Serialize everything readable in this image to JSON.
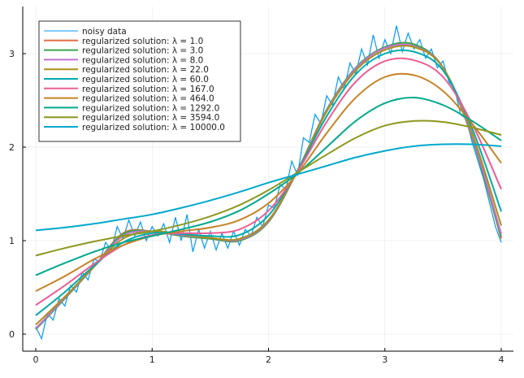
{
  "chart_data": {
    "type": "line",
    "title": "",
    "xlabel": "",
    "ylabel": "",
    "xlim": [
      -0.12,
      4.1
    ],
    "ylim": [
      -0.18,
      3.48
    ],
    "xticks": [
      0,
      1,
      2,
      3,
      4
    ],
    "yticks": [
      0,
      1,
      2,
      3
    ],
    "xtick_labels": [
      "0",
      "1",
      "2",
      "3",
      "4"
    ],
    "ytick_labels": [
      "0",
      "1",
      "2",
      "3"
    ],
    "grid": true,
    "legend_position": "top-left",
    "noisy": {
      "name": "noisy data",
      "color": "#009AFA",
      "x": [
        0,
        0.05,
        0.1,
        0.15,
        0.2,
        0.25,
        0.3,
        0.35,
        0.4,
        0.45,
        0.5,
        0.55,
        0.6,
        0.65,
        0.7,
        0.75,
        0.8,
        0.85,
        0.9,
        0.95,
        1,
        1.05,
        1.1,
        1.15,
        1.2,
        1.25,
        1.3,
        1.35,
        1.4,
        1.45,
        1.5,
        1.55,
        1.6,
        1.65,
        1.7,
        1.75,
        1.8,
        1.85,
        1.9,
        1.95,
        2,
        2.05,
        2.1,
        2.15,
        2.2,
        2.25,
        2.3,
        2.35,
        2.4,
        2.45,
        2.5,
        2.55,
        2.6,
        2.65,
        2.7,
        2.75,
        2.8,
        2.85,
        2.9,
        2.95,
        3,
        3.05,
        3.1,
        3.15,
        3.2,
        3.25,
        3.3,
        3.35,
        3.4,
        3.45,
        3.5,
        3.55,
        3.6,
        3.65,
        3.7,
        3.75,
        3.8,
        3.85,
        3.9,
        3.95,
        4
      ],
      "y": [
        0.08,
        -0.05,
        0.22,
        0.15,
        0.38,
        0.3,
        0.52,
        0.45,
        0.66,
        0.58,
        0.8,
        0.78,
        0.98,
        0.9,
        1.15,
        1.02,
        1.22,
        1.05,
        1.2,
        1.0,
        1.15,
        1.05,
        1.18,
        0.98,
        1.25,
        1.0,
        1.28,
        0.88,
        1.12,
        0.92,
        1.1,
        0.9,
        1.08,
        0.92,
        1.1,
        0.95,
        1.12,
        1.05,
        1.25,
        1.15,
        1.38,
        1.35,
        1.6,
        1.55,
        1.85,
        1.7,
        2.1,
        2.05,
        2.35,
        2.25,
        2.55,
        2.45,
        2.75,
        2.62,
        2.9,
        2.78,
        3.05,
        2.88,
        3.2,
        2.95,
        3.15,
        3.0,
        3.3,
        3.02,
        3.22,
        3.05,
        3.15,
        2.95,
        3.05,
        2.85,
        2.92,
        2.7,
        2.62,
        2.35,
        2.3,
        2.05,
        1.85,
        1.65,
        1.4,
        1.15,
        0.98
      ]
    },
    "x": [
      0,
      0.25,
      0.5,
      0.75,
      1,
      1.25,
      1.5,
      1.75,
      2,
      2.25,
      2.5,
      2.75,
      3,
      3.25,
      3.5,
      3.75,
      4
    ],
    "series": [
      {
        "name": "regularized solution: λ = 1.0",
        "color": "#E36F47",
        "values": [
          0.05,
          0.38,
          0.72,
          1.08,
          1.1,
          1.05,
          1.02,
          1.0,
          1.2,
          1.75,
          2.4,
          2.85,
          3.07,
          3.1,
          2.85,
          2.1,
          1.02
        ]
      },
      {
        "name": "regularized solution: λ = 3.0",
        "color": "#3EA44E",
        "values": [
          0.05,
          0.38,
          0.72,
          1.07,
          1.1,
          1.05,
          1.02,
          1.0,
          1.2,
          1.75,
          2.4,
          2.85,
          3.07,
          3.1,
          2.85,
          2.1,
          1.04
        ]
      },
      {
        "name": "regularized solution: λ = 8.0",
        "color": "#C371D2",
        "values": [
          0.06,
          0.39,
          0.72,
          1.05,
          1.1,
          1.06,
          1.03,
          1.01,
          1.21,
          1.75,
          2.39,
          2.84,
          3.06,
          3.08,
          2.85,
          2.12,
          1.07
        ]
      },
      {
        "name": "regularized solution: λ = 22.0",
        "color": "#AC8E18",
        "values": [
          0.1,
          0.4,
          0.72,
          1.02,
          1.1,
          1.07,
          1.03,
          1.02,
          1.22,
          1.75,
          2.38,
          2.82,
          3.04,
          3.07,
          2.85,
          2.15,
          1.16
        ]
      },
      {
        "name": "regularized solution: λ = 60.0",
        "color": "#00AAAE",
        "values": [
          0.2,
          0.45,
          0.73,
          0.98,
          1.08,
          1.07,
          1.05,
          1.06,
          1.27,
          1.75,
          2.33,
          2.78,
          3.0,
          3.02,
          2.82,
          2.2,
          1.31
        ]
      },
      {
        "name": "regularized solution: λ = 167.0",
        "color": "#ED5E93",
        "values": [
          0.31,
          0.52,
          0.75,
          0.95,
          1.06,
          1.08,
          1.08,
          1.12,
          1.32,
          1.74,
          2.27,
          2.7,
          2.92,
          2.93,
          2.75,
          2.25,
          1.55
        ]
      },
      {
        "name": "regularized solution: λ = 464.0",
        "color": "#C68225",
        "values": [
          0.46,
          0.62,
          0.8,
          0.95,
          1.05,
          1.1,
          1.14,
          1.22,
          1.4,
          1.72,
          2.15,
          2.53,
          2.75,
          2.77,
          2.6,
          2.25,
          1.83
        ]
      },
      {
        "name": "regularized solution: λ = 1292.0",
        "color": "#00A98D",
        "values": [
          0.63,
          0.76,
          0.88,
          0.98,
          1.05,
          1.12,
          1.2,
          1.32,
          1.5,
          1.72,
          2.0,
          2.28,
          2.47,
          2.53,
          2.45,
          2.28,
          2.07
        ]
      },
      {
        "name": "regularized solution: λ = 3594.0",
        "color": "#8E971E",
        "values": [
          0.84,
          0.92,
          0.99,
          1.05,
          1.1,
          1.17,
          1.26,
          1.38,
          1.54,
          1.73,
          1.92,
          2.1,
          2.23,
          2.28,
          2.27,
          2.21,
          2.13
        ]
      },
      {
        "name": "regularized solution: λ = 10000.0",
        "color": "#00A9CD",
        "values": [
          1.11,
          1.14,
          1.18,
          1.23,
          1.28,
          1.35,
          1.43,
          1.52,
          1.62,
          1.71,
          1.8,
          1.89,
          1.96,
          2.01,
          2.03,
          2.03,
          2.01
        ]
      }
    ]
  }
}
